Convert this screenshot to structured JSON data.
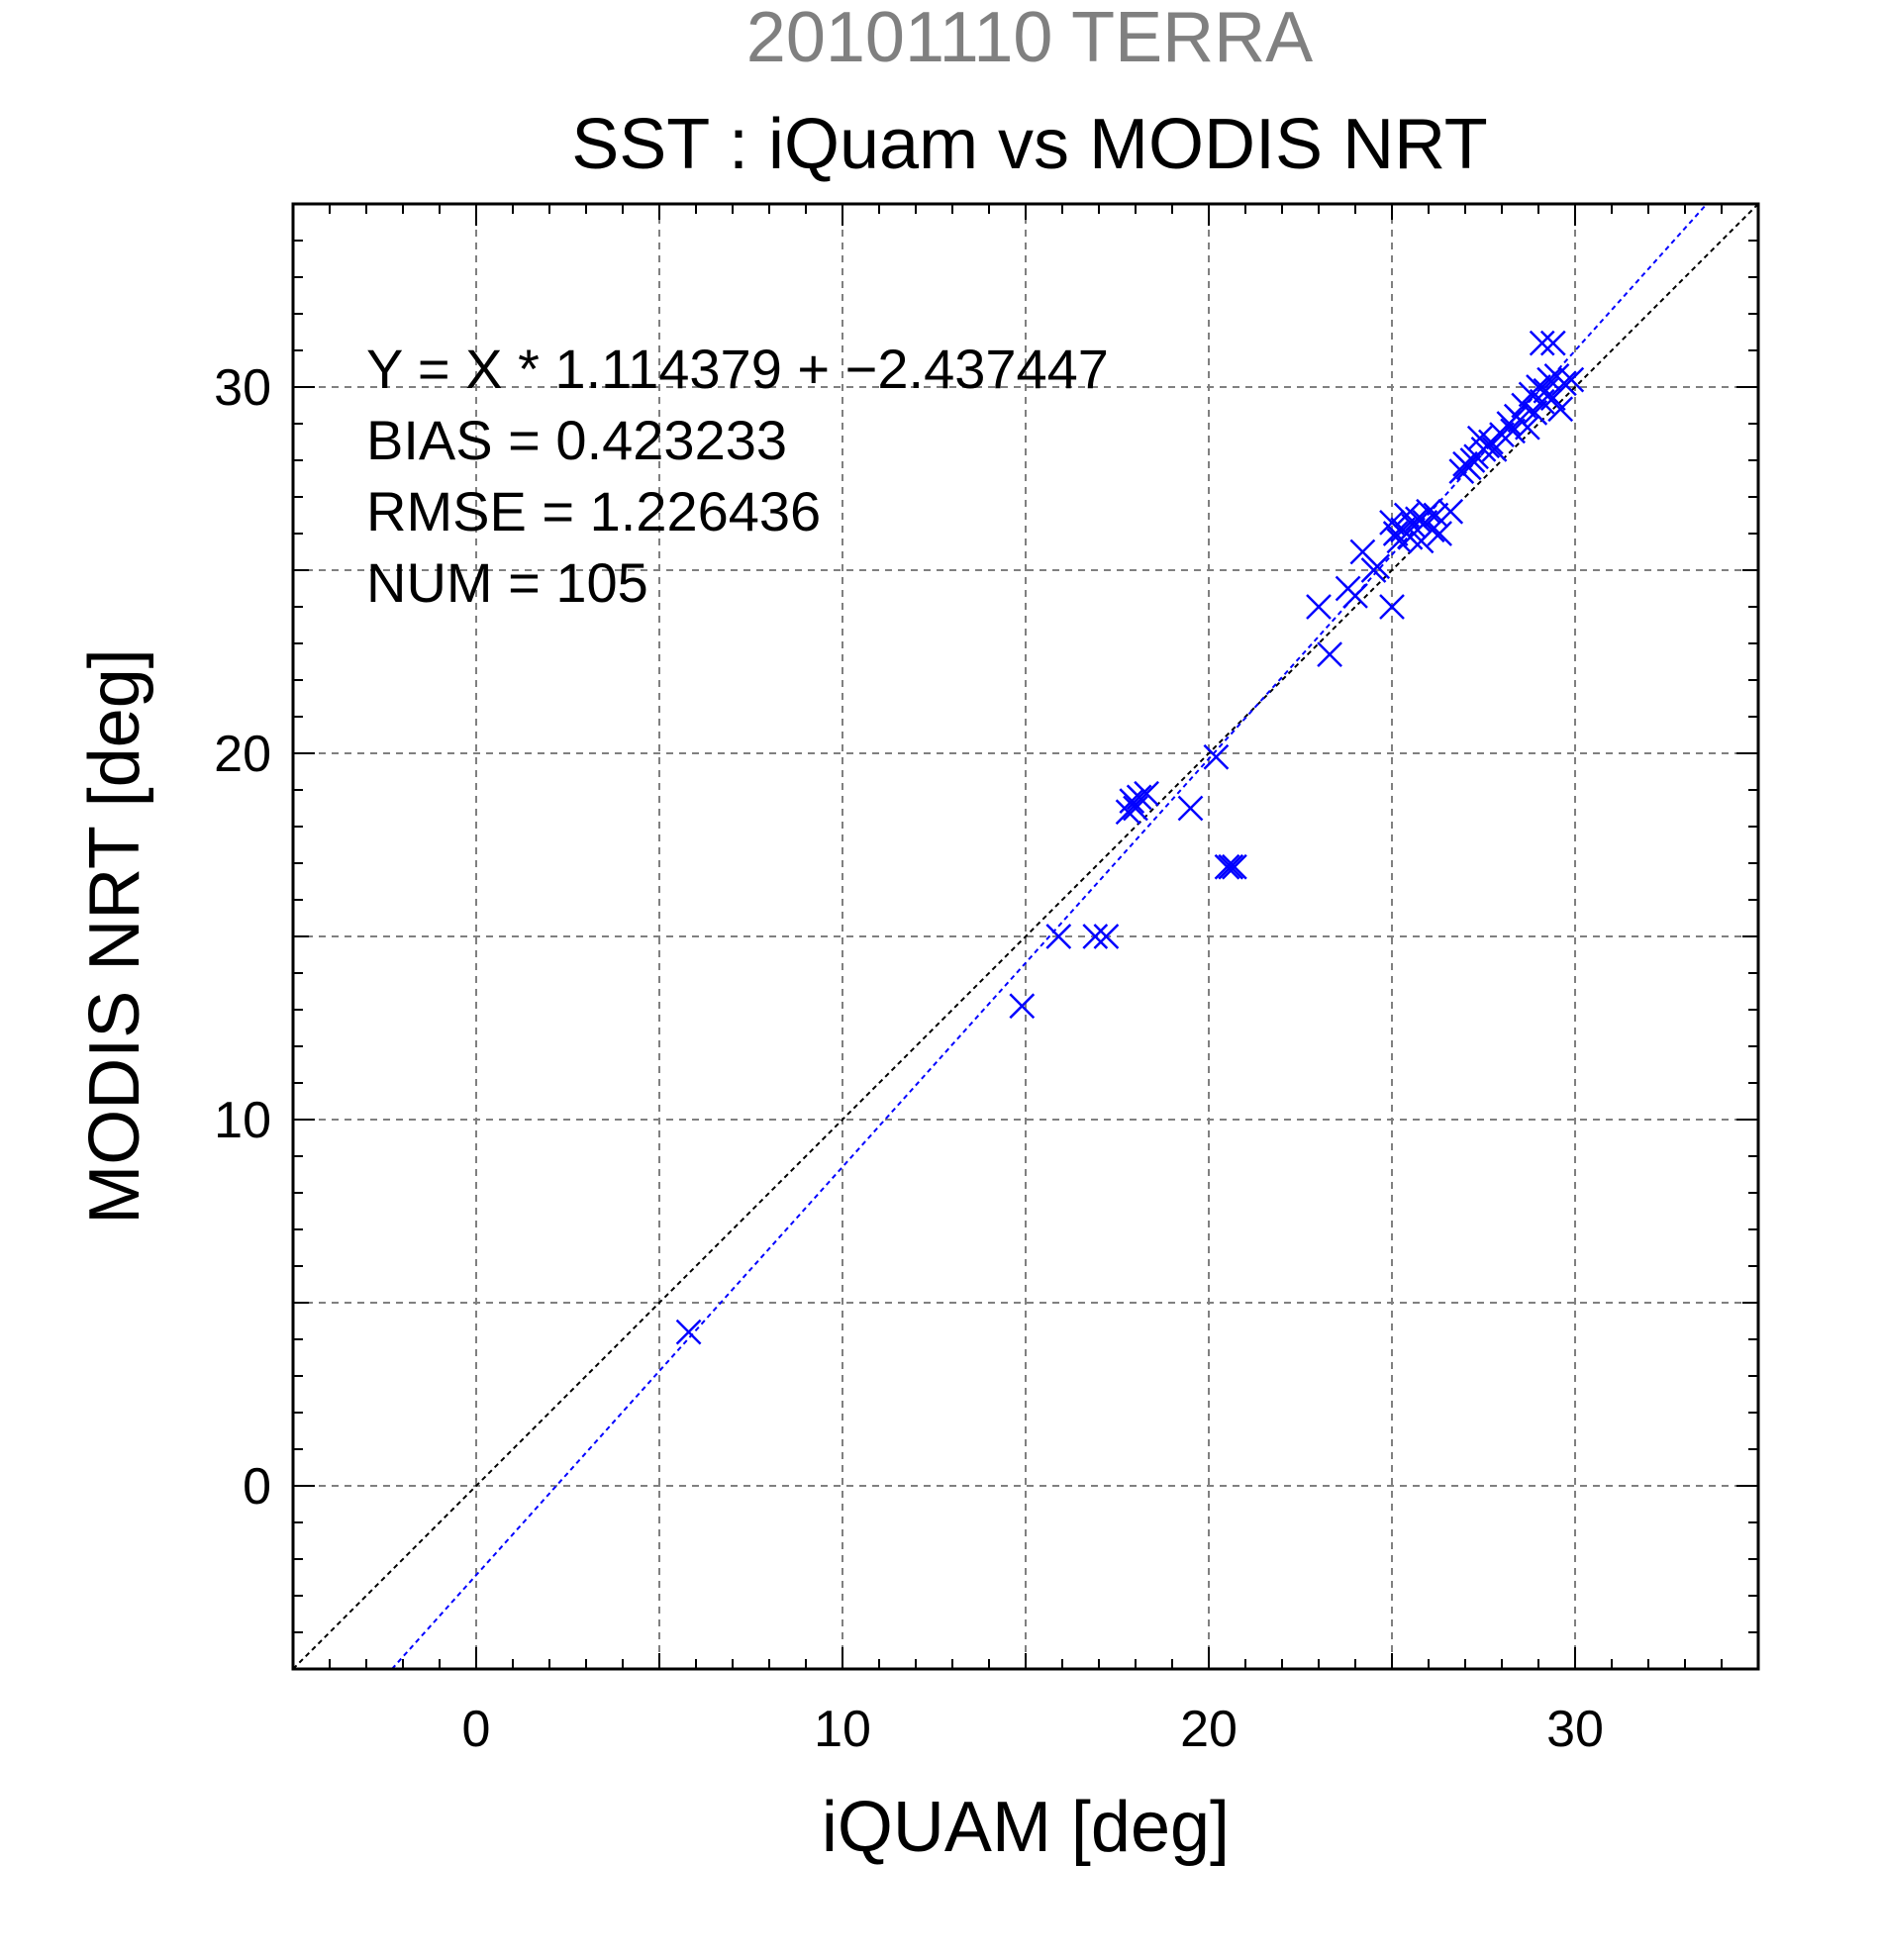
{
  "chart_data": {
    "type": "scatter",
    "title": "20101110 TERRA",
    "subtitle": "SST : iQuam vs MODIS NRT",
    "xlabel": "iQUAM [deg]",
    "ylabel": "MODIS NRT [deg]",
    "xlim": [
      -5,
      35
    ],
    "ylim": [
      -5,
      35
    ],
    "xticks": [
      0,
      10,
      20,
      30
    ],
    "yticks": [
      0,
      10,
      20,
      30
    ],
    "xtick_labels": [
      "0",
      "10",
      "20",
      "30"
    ],
    "ytick_labels": [
      "0",
      "10",
      "20",
      "30"
    ],
    "grid": true,
    "colors": {
      "title": "#808080",
      "points": "#0000ff",
      "fit_line": "#0000ff",
      "reference_line": "#000000",
      "text": "#000000",
      "grid": "#808080"
    },
    "stats": [
      "Y = X * 1.114379 + −2.437447",
      "BIAS = 0.423233",
      "RMSE = 1.226436",
      "NUM = 105"
    ],
    "fit": {
      "slope": 1.114379,
      "intercept": -2.437447
    },
    "reference_line": {
      "slope": 1,
      "intercept": 0
    },
    "marker": "x",
    "series": [
      {
        "points": [
          [
            5.8,
            4.2
          ],
          [
            14.9,
            13.1
          ],
          [
            15.9,
            15.0
          ],
          [
            16.9,
            15.0
          ],
          [
            17.2,
            15.0
          ],
          [
            17.8,
            18.4
          ],
          [
            17.9,
            18.7
          ],
          [
            18.0,
            18.5
          ],
          [
            18.1,
            18.8
          ],
          [
            18.3,
            18.9
          ],
          [
            19.5,
            18.5
          ],
          [
            20.2,
            19.9
          ],
          [
            20.5,
            16.9
          ],
          [
            20.6,
            16.9
          ],
          [
            20.7,
            16.9
          ],
          [
            23.0,
            24.0
          ],
          [
            23.3,
            22.7
          ],
          [
            23.8,
            24.5
          ],
          [
            24.0,
            24.3
          ],
          [
            24.2,
            25.5
          ],
          [
            24.5,
            25.0
          ],
          [
            24.6,
            25.1
          ],
          [
            25.0,
            24.0
          ],
          [
            25.0,
            26.3
          ],
          [
            25.1,
            26.0
          ],
          [
            25.2,
            25.8
          ],
          [
            25.3,
            26.1
          ],
          [
            25.4,
            26.5
          ],
          [
            25.5,
            25.9
          ],
          [
            25.6,
            26.2
          ],
          [
            25.7,
            26.4
          ],
          [
            25.8,
            25.8
          ],
          [
            25.9,
            26.3
          ],
          [
            26.0,
            26.6
          ],
          [
            26.1,
            26.1
          ],
          [
            26.2,
            26.5
          ],
          [
            26.3,
            26.0
          ],
          [
            26.6,
            26.6
          ],
          [
            26.9,
            27.7
          ],
          [
            27.0,
            27.9
          ],
          [
            27.1,
            27.8
          ],
          [
            27.2,
            28.0
          ],
          [
            27.3,
            28.1
          ],
          [
            27.4,
            28.6
          ],
          [
            27.5,
            28.3
          ],
          [
            27.6,
            28.4
          ],
          [
            27.7,
            28.5
          ],
          [
            27.8,
            28.3
          ],
          [
            28.0,
            28.7
          ],
          [
            28.2,
            29.0
          ],
          [
            28.3,
            28.8
          ],
          [
            28.4,
            29.2
          ],
          [
            28.5,
            29.1
          ],
          [
            28.6,
            29.5
          ],
          [
            28.7,
            28.9
          ],
          [
            28.8,
            29.8
          ],
          [
            28.9,
            29.3
          ],
          [
            29.0,
            30.0
          ],
          [
            29.1,
            29.6
          ],
          [
            29.2,
            29.9
          ],
          [
            29.3,
            30.2
          ],
          [
            29.4,
            29.7
          ],
          [
            29.5,
            30.3
          ],
          [
            29.6,
            29.4
          ],
          [
            29.7,
            30.1
          ],
          [
            29.9,
            30.2
          ],
          [
            29.1,
            31.2
          ],
          [
            29.4,
            31.2
          ]
        ]
      }
    ]
  }
}
